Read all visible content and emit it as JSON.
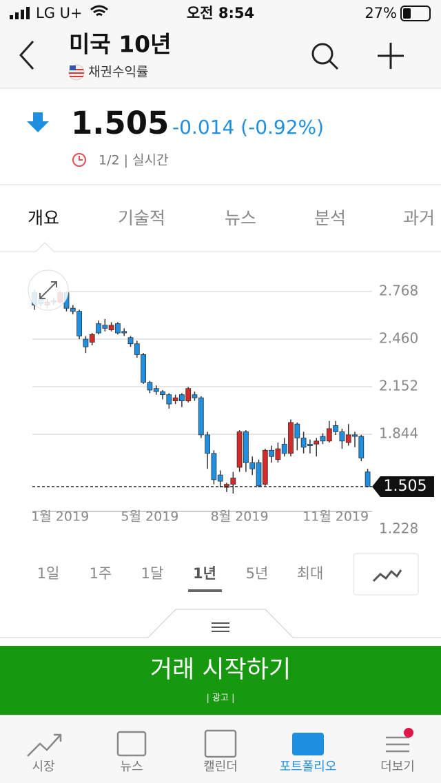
{
  "status_bar": {
    "carrier": "LG U+",
    "time": "오전 8:54",
    "battery": "27%"
  },
  "header": {
    "title": "미국 10년",
    "subtitle": "채권수익률"
  },
  "quote": {
    "price": "1.505",
    "change": "-0.014 (-0.92%)",
    "meta": "1/2 | 실시간"
  },
  "tabs": [
    "개요",
    "기술적",
    "뉴스",
    "분석",
    "과거"
  ],
  "chart_data": {
    "type": "candlestick",
    "categories": [
      null,
      null,
      null,
      null,
      "1월 2019",
      null,
      null,
      null,
      null,
      null,
      null,
      null,
      null,
      null,
      null,
      null,
      null,
      null,
      "5월 2019",
      null,
      null,
      null,
      null,
      null,
      null,
      null,
      null,
      null,
      null,
      null,
      null,
      null,
      "8월 2019",
      null,
      null,
      null,
      null,
      null,
      null,
      null,
      null,
      null,
      null,
      null,
      null,
      null,
      null,
      "11월 2019",
      null,
      null,
      null,
      null,
      null
    ],
    "open": [
      2.76,
      2.72,
      2.68,
      2.71,
      2.7,
      2.76,
      2.66,
      2.64,
      2.46,
      2.44,
      2.56,
      2.55,
      2.52,
      2.56,
      2.51,
      2.47,
      2.43,
      2.36,
      2.18,
      2.14,
      2.12,
      2.1,
      2.06,
      2.1,
      2.06,
      2.1,
      2.08,
      1.84,
      1.72,
      1.58,
      1.5,
      1.52,
      1.63,
      1.86,
      1.66,
      1.66,
      1.52,
      1.74,
      1.68,
      1.78,
      1.72,
      1.91,
      1.82,
      1.78,
      1.78,
      1.83,
      1.8,
      1.9,
      1.86,
      1.79,
      1.84,
      1.83,
      1.6
    ],
    "high": [
      2.78,
      2.74,
      2.72,
      2.73,
      2.77,
      2.77,
      2.68,
      2.65,
      2.48,
      2.5,
      2.58,
      2.59,
      2.57,
      2.57,
      2.53,
      2.48,
      2.45,
      2.37,
      2.19,
      2.16,
      2.13,
      2.11,
      2.1,
      2.11,
      2.15,
      2.12,
      2.09,
      1.86,
      1.74,
      1.61,
      1.53,
      1.6,
      1.87,
      1.87,
      1.7,
      1.68,
      1.75,
      1.77,
      1.79,
      1.82,
      1.94,
      1.92,
      1.86,
      1.81,
      1.82,
      1.85,
      1.93,
      1.93,
      1.88,
      1.91,
      1.86,
      1.84,
      1.62
    ],
    "low": [
      2.65,
      2.67,
      2.66,
      2.68,
      2.69,
      2.64,
      2.62,
      2.46,
      2.37,
      2.42,
      2.49,
      2.51,
      2.51,
      2.49,
      2.48,
      2.41,
      2.34,
      2.17,
      2.11,
      2.1,
      2.07,
      2.01,
      2.04,
      2.02,
      2.05,
      2.06,
      1.82,
      1.62,
      1.52,
      1.5,
      1.47,
      1.46,
      1.6,
      1.6,
      1.58,
      1.5,
      1.51,
      1.66,
      1.66,
      1.7,
      1.7,
      1.74,
      1.72,
      1.72,
      1.7,
      1.78,
      1.79,
      1.84,
      1.75,
      1.77,
      1.76,
      1.67,
      1.5
    ],
    "close": [
      2.68,
      2.69,
      2.7,
      2.7,
      2.76,
      2.66,
      2.64,
      2.48,
      2.41,
      2.49,
      2.5,
      2.53,
      2.55,
      2.5,
      2.5,
      2.43,
      2.36,
      2.18,
      2.13,
      2.12,
      2.1,
      2.04,
      2.08,
      2.06,
      2.14,
      2.08,
      1.84,
      1.72,
      1.55,
      1.54,
      1.52,
      1.56,
      1.86,
      1.66,
      1.62,
      1.51,
      1.74,
      1.7,
      1.75,
      1.72,
      1.92,
      1.82,
      1.76,
      1.77,
      1.8,
      1.8,
      1.88,
      1.86,
      1.8,
      1.84,
      1.83,
      1.69,
      1.505
    ],
    "up_color": "#d42a2a",
    "down_color": "#1e8fe1",
    "ylim": [
      1.228,
      2.768
    ],
    "yticks": [
      2.768,
      {
        "value": 2.46,
        "label": "2.460"
      },
      2.152,
      1.844,
      1.228
    ],
    "grid": true,
    "last_value": 1.505
  },
  "periods": [
    "1일",
    "1주",
    "1달",
    "1년",
    "5년",
    "최대"
  ],
  "cta": {
    "label": "거래 시작하기",
    "ad": "| 광고 |"
  },
  "nav": [
    "시장",
    "뉴스",
    "캘린더",
    "포트폴리오",
    "더보기"
  ]
}
